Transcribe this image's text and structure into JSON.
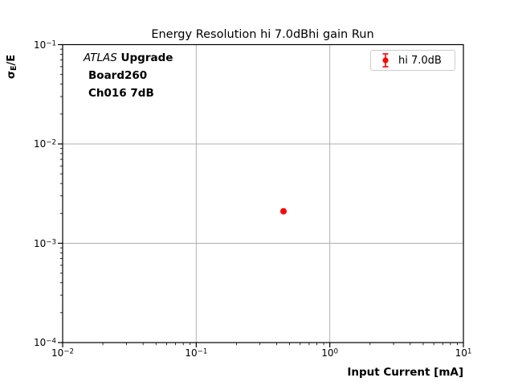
{
  "title": "Energy Resolution hi 7.0dBhi gain Run",
  "axis_labels": {
    "x": "Input Current [mA]",
    "y_sigma": "σ",
    "y_sub": "E",
    "y_rest": "/E"
  },
  "annotation": {
    "line1_italic": "ATLAS",
    "line1_bold": " Upgrade",
    "line2": "Board260",
    "line3": "Ch016 7dB"
  },
  "legend": {
    "label": "hi 7.0dB"
  },
  "colors": {
    "series": "#ff0000",
    "grid": "#b0b0b0",
    "spine": "#000000",
    "tick": "#000000",
    "legend_border": "#cccccc",
    "background": "#ffffff"
  },
  "chart_data": {
    "type": "scatter",
    "title": "Energy Resolution hi 7.0dBhi gain Run",
    "xlabel": "Input Current [mA]",
    "ylabel": "sigma_E/E",
    "xscale": "log",
    "yscale": "log",
    "xlim": [
      0.01,
      10
    ],
    "ylim": [
      0.0001,
      0.1
    ],
    "x_tick_exponents": [
      -2,
      -1,
      0,
      1
    ],
    "y_tick_exponents": [
      -1,
      -2,
      -3,
      -4
    ],
    "grid": true,
    "legend_position": "upper right",
    "series": [
      {
        "name": "hi 7.0dB",
        "color": "#ff0000",
        "marker": "circle",
        "style": "errorbar",
        "points": [
          {
            "x": 0.45,
            "y": 0.0021
          }
        ]
      }
    ]
  }
}
